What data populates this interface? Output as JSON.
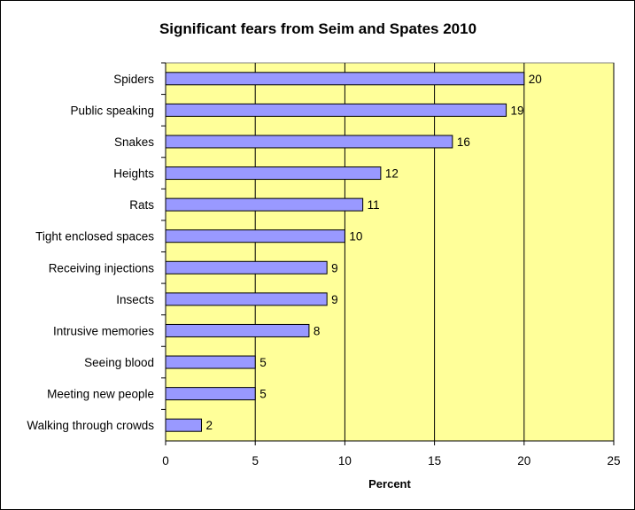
{
  "chart_data": {
    "type": "bar",
    "orientation": "horizontal",
    "title": "Significant fears from Seim and Spates 2010",
    "xlabel": "Percent",
    "ylabel": "",
    "categories": [
      "Spiders",
      "Public speaking",
      "Snakes",
      "Heights",
      "Rats",
      "Tight enclosed spaces",
      "Receiving injections",
      "Insects",
      "Intrusive memories",
      "Seeing blood",
      "Meeting new people",
      "Walking through crowds"
    ],
    "values": [
      20,
      19,
      16,
      12,
      11,
      10,
      9,
      9,
      8,
      5,
      5,
      2
    ],
    "xlim": [
      0,
      25
    ],
    "xticks": [
      0,
      5,
      10,
      15,
      20,
      25
    ],
    "grid": "vertical",
    "legend": "none",
    "colors": {
      "bar_fill": "#9999ff",
      "bar_stroke": "#000000",
      "plot_background": "#ffff99",
      "gridline": "#000000"
    }
  }
}
